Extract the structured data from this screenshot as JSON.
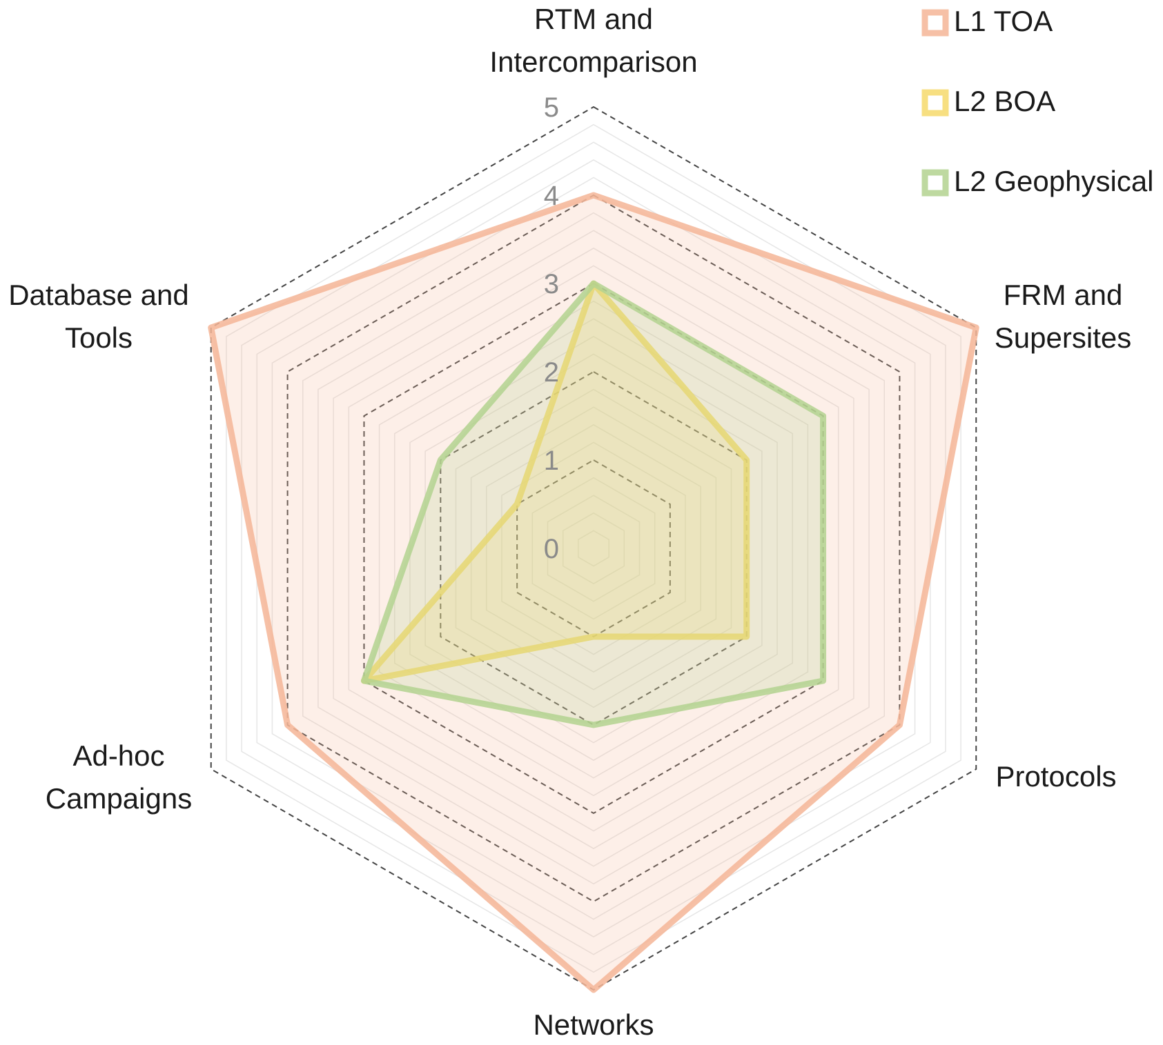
{
  "chart_data": {
    "type": "radar",
    "axes": [
      [
        "RTM and",
        "Intercomparison"
      ],
      [
        "FRM and",
        "Supersites"
      ],
      [
        "Protocols"
      ],
      [
        "Networks"
      ],
      [
        "Ad-hoc",
        "Campaigns"
      ],
      [
        "Database and",
        "Tools"
      ]
    ],
    "ticks": [
      "0",
      "1",
      "2",
      "3",
      "4",
      "5"
    ],
    "range": [
      0,
      5
    ],
    "series": [
      {
        "name": "L1 TOA",
        "values": [
          4,
          5,
          4,
          5,
          4,
          5
        ],
        "color": "#f4b596"
      },
      {
        "name": "L2 BOA",
        "values": [
          3,
          2,
          2,
          1,
          3,
          1
        ],
        "color": "#f6d96b"
      },
      {
        "name": "L2 Geophysical",
        "values": [
          3,
          3,
          3,
          2,
          3,
          2
        ],
        "color": "#b3d28f"
      }
    ],
    "legend_position": "top-right",
    "grid_color": "#444444"
  }
}
